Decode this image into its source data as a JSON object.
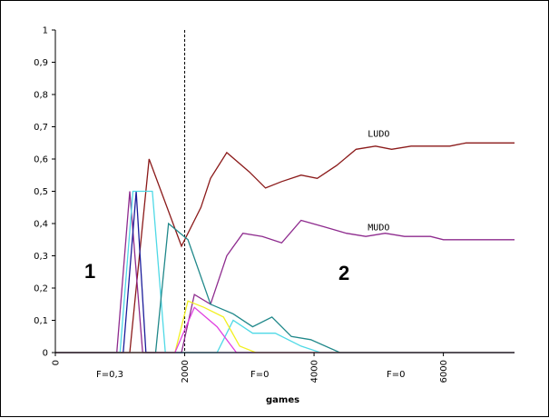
{
  "chart_data": {
    "type": "line",
    "title": "",
    "xlabel": "games",
    "ylabel": "",
    "xlim": [
      0,
      7100
    ],
    "ylim": [
      0,
      1
    ],
    "grid": false,
    "x_ticks": [
      {
        "value": 0,
        "label": "0"
      },
      {
        "value": 2000,
        "label": "2000"
      },
      {
        "value": 4000,
        "label": "4000"
      },
      {
        "value": 6000,
        "label": "6000"
      }
    ],
    "y_ticks": [
      {
        "value": 0,
        "label": "0"
      },
      {
        "value": 0.1,
        "label": "0,1"
      },
      {
        "value": 0.2,
        "label": "0,2"
      },
      {
        "value": 0.3,
        "label": "0,3"
      },
      {
        "value": 0.4,
        "label": "0,4"
      },
      {
        "value": 0.5,
        "label": "0,5"
      },
      {
        "value": 0.6,
        "label": "0,6"
      },
      {
        "value": 0.7,
        "label": "0,7"
      },
      {
        "value": 0.8,
        "label": "0,8"
      },
      {
        "value": 0.9,
        "label": "0,9"
      },
      {
        "value": 1,
        "label": "1"
      }
    ],
    "phase_line_x": 2000,
    "annotations": {
      "phase1": "1",
      "phase2": "2",
      "f1": "F=0,3",
      "f2": "F=0",
      "f3": "F=0"
    },
    "series": [
      {
        "name": "LUDO",
        "color": "#8b1a1a",
        "points": [
          [
            0,
            0
          ],
          [
            1150,
            0
          ],
          [
            1450,
            0.6
          ],
          [
            1950,
            0.33
          ],
          [
            2250,
            0.45
          ],
          [
            2400,
            0.54
          ],
          [
            2650,
            0.62
          ],
          [
            3000,
            0.56
          ],
          [
            3250,
            0.51
          ],
          [
            3500,
            0.53
          ],
          [
            3800,
            0.55
          ],
          [
            4050,
            0.54
          ],
          [
            4350,
            0.58
          ],
          [
            4650,
            0.63
          ],
          [
            4950,
            0.64
          ],
          [
            5200,
            0.63
          ],
          [
            5500,
            0.64
          ],
          [
            6100,
            0.64
          ],
          [
            6350,
            0.65
          ],
          [
            7100,
            0.65
          ]
        ]
      },
      {
        "name": "MUDO",
        "color": "#8e2b8e",
        "points": [
          [
            0,
            0
          ],
          [
            950,
            0
          ],
          [
            1150,
            0.5
          ],
          [
            1350,
            0
          ],
          [
            1950,
            0
          ],
          [
            2150,
            0.18
          ],
          [
            2400,
            0.15
          ],
          [
            2650,
            0.3
          ],
          [
            2900,
            0.37
          ],
          [
            3200,
            0.36
          ],
          [
            3500,
            0.34
          ],
          [
            3800,
            0.41
          ],
          [
            4150,
            0.39
          ],
          [
            4500,
            0.37
          ],
          [
            4800,
            0.36
          ],
          [
            5100,
            0.37
          ],
          [
            5400,
            0.36
          ],
          [
            5800,
            0.36
          ],
          [
            6000,
            0.35
          ],
          [
            7100,
            0.35
          ]
        ]
      },
      {
        "color": "#1c1c9a",
        "points": [
          [
            0,
            0
          ],
          [
            1050,
            0
          ],
          [
            1250,
            0.5
          ],
          [
            1400,
            0
          ],
          [
            7100,
            0
          ]
        ]
      },
      {
        "color": "#4fd9e6",
        "points": [
          [
            0,
            0
          ],
          [
            1000,
            0
          ],
          [
            1200,
            0.5
          ],
          [
            1500,
            0.5
          ],
          [
            1700,
            0
          ],
          [
            2500,
            0
          ],
          [
            2750,
            0.1
          ],
          [
            3050,
            0.06
          ],
          [
            3400,
            0.06
          ],
          [
            3800,
            0.02
          ],
          [
            4100,
            0
          ],
          [
            7100,
            0
          ]
        ]
      },
      {
        "color": "#20888a",
        "points": [
          [
            0,
            0
          ],
          [
            1550,
            0
          ],
          [
            1750,
            0.4
          ],
          [
            2050,
            0.35
          ],
          [
            2400,
            0.15
          ],
          [
            2750,
            0.12
          ],
          [
            3050,
            0.08
          ],
          [
            3350,
            0.11
          ],
          [
            3650,
            0.05
          ],
          [
            3950,
            0.04
          ],
          [
            4400,
            0
          ],
          [
            7100,
            0
          ]
        ]
      },
      {
        "color": "#f2f020",
        "points": [
          [
            0,
            0
          ],
          [
            1850,
            0
          ],
          [
            2050,
            0.16
          ],
          [
            2300,
            0.14
          ],
          [
            2600,
            0.11
          ],
          [
            2850,
            0.02
          ],
          [
            3100,
            0
          ],
          [
            7100,
            0
          ]
        ]
      },
      {
        "color": "#e040e0",
        "points": [
          [
            0,
            0
          ],
          [
            1850,
            0
          ],
          [
            2150,
            0.14
          ],
          [
            2500,
            0.08
          ],
          [
            2800,
            0
          ],
          [
            7100,
            0
          ]
        ]
      }
    ],
    "series_label_anchor": {
      "LUDO": [
        5000,
        0.66
      ],
      "MUDO": [
        5000,
        0.37
      ]
    }
  }
}
